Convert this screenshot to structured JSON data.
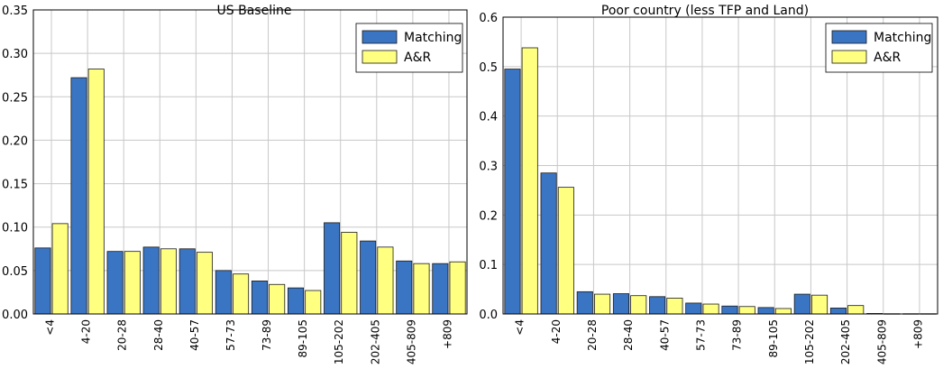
{
  "chart_data": [
    {
      "type": "bar",
      "title": "US Baseline",
      "categories": [
        "<4",
        "4-20",
        "20-28",
        "28-40",
        "40-57",
        "57-73",
        "73-89",
        "89-105",
        "105-202",
        "202-405",
        "405-809",
        "+809"
      ],
      "series": [
        {
          "name": "Matching",
          "color": "#3a75c4",
          "values": [
            0.076,
            0.272,
            0.072,
            0.077,
            0.075,
            0.05,
            0.038,
            0.03,
            0.105,
            0.084,
            0.061,
            0.058
          ]
        },
        {
          "name": "A&R",
          "color": "#ffff80",
          "values": [
            0.104,
            0.282,
            0.072,
            0.075,
            0.071,
            0.046,
            0.034,
            0.027,
            0.094,
            0.077,
            0.058,
            0.06
          ]
        }
      ],
      "ylim": [
        0,
        0.35
      ],
      "yticks": [
        "0.00",
        "0.05",
        "0.10",
        "0.15",
        "0.20",
        "0.25",
        "0.30",
        "0.35"
      ],
      "grid": true,
      "legend_position": "top-right"
    },
    {
      "type": "bar",
      "title": "Poor country (less TFP and Land)",
      "categories": [
        "<4",
        "4-20",
        "20-28",
        "28-40",
        "40-57",
        "57-73",
        "73-89",
        "89-105",
        "105-202",
        "202-405",
        "405-809",
        "+809"
      ],
      "series": [
        {
          "name": "Matching",
          "color": "#3a75c4",
          "values": [
            0.495,
            0.285,
            0.045,
            0.041,
            0.035,
            0.022,
            0.016,
            0.013,
            0.04,
            0.012,
            0.001,
            0.0005
          ]
        },
        {
          "name": "A&R",
          "color": "#ffff80",
          "values": [
            0.538,
            0.256,
            0.04,
            0.037,
            0.032,
            0.02,
            0.015,
            0.011,
            0.038,
            0.017,
            0.0005,
            0.0005
          ]
        }
      ],
      "ylim": [
        0,
        0.6
      ],
      "yticks": [
        "0.0",
        "0.1",
        "0.2",
        "0.3",
        "0.4",
        "0.5",
        "0.6"
      ],
      "grid": true,
      "legend_position": "top-right"
    }
  ]
}
